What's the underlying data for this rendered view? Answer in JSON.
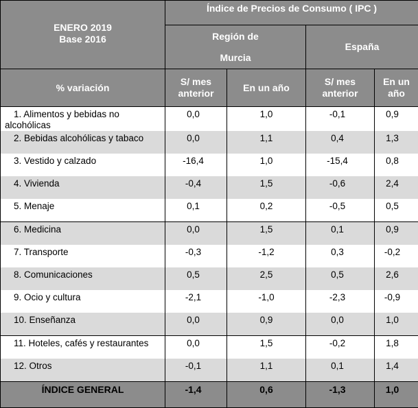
{
  "header": {
    "period_line1": "ENERO 2019",
    "period_line2": "Base 2016",
    "index_title": "Índice de Precios de Consumo ( IPC )",
    "region_label": "Región de",
    "region_label2": "Murcia",
    "country_label": "España",
    "row_header": "% variación",
    "col_prev_month_1": "S/ mes",
    "col_prev_month_2": "anterior",
    "col_year_full": "En un año",
    "col_year_1": "En un",
    "col_year_2": "año"
  },
  "rows": [
    {
      "label": "1. Alimentos y bebidas no alcohólicas",
      "murcia_mes": "0,0",
      "murcia_anio": "1,0",
      "espana_mes": "-0,1",
      "espana_anio": "0,9"
    },
    {
      "label": "2. Bebidas alcohólicas y tabaco",
      "murcia_mes": "0,0",
      "murcia_anio": "1,1",
      "espana_mes": "0,4",
      "espana_anio": "1,3"
    },
    {
      "label": "3. Vestido y calzado",
      "murcia_mes": "-16,4",
      "murcia_anio": "1,0",
      "espana_mes": "-15,4",
      "espana_anio": "0,8"
    },
    {
      "label": "4. Vivienda",
      "murcia_mes": "-0,4",
      "murcia_anio": "1,5",
      "espana_mes": "-0,6",
      "espana_anio": "2,4"
    },
    {
      "label": "5. Menaje",
      "murcia_mes": "0,1",
      "murcia_anio": "0,2",
      "espana_mes": "-0,5",
      "espana_anio": "0,5"
    },
    {
      "label": "6. Medicina",
      "murcia_mes": "0,0",
      "murcia_anio": "1,5",
      "espana_mes": "0,1",
      "espana_anio": "0,9"
    },
    {
      "label": "7. Transporte",
      "murcia_mes": "-0,3",
      "murcia_anio": "-1,2",
      "espana_mes": "0,3",
      "espana_anio": "-0,2"
    },
    {
      "label": "8. Comunicaciones",
      "murcia_mes": "0,5",
      "murcia_anio": "2,5",
      "espana_mes": "0,5",
      "espana_anio": "2,6"
    },
    {
      "label": "9. Ocio y cultura",
      "murcia_mes": "-2,1",
      "murcia_anio": "-1,0",
      "espana_mes": "-2,3",
      "espana_anio": "-0,9"
    },
    {
      "label": "10. Enseñanza",
      "murcia_mes": "0,0",
      "murcia_anio": "0,9",
      "espana_mes": "0,0",
      "espana_anio": "1,0"
    },
    {
      "label": "11. Hoteles, cafés y restaurantes",
      "murcia_mes": "0,0",
      "murcia_anio": "1,5",
      "espana_mes": "-0,2",
      "espana_anio": "1,8"
    },
    {
      "label": "12. Otros",
      "murcia_mes": "-0,1",
      "murcia_anio": "1,1",
      "espana_mes": "0,1",
      "espana_anio": "1,4"
    }
  ],
  "total": {
    "label": "ÍNDICE GENERAL",
    "murcia_mes": "-1,4",
    "murcia_anio": "0,6",
    "espana_mes": "-1,3",
    "espana_anio": "1,0"
  },
  "colors": {
    "header_bg": "#8c8c8c",
    "stripe": "#dadada",
    "header_text": "#ffffff"
  }
}
